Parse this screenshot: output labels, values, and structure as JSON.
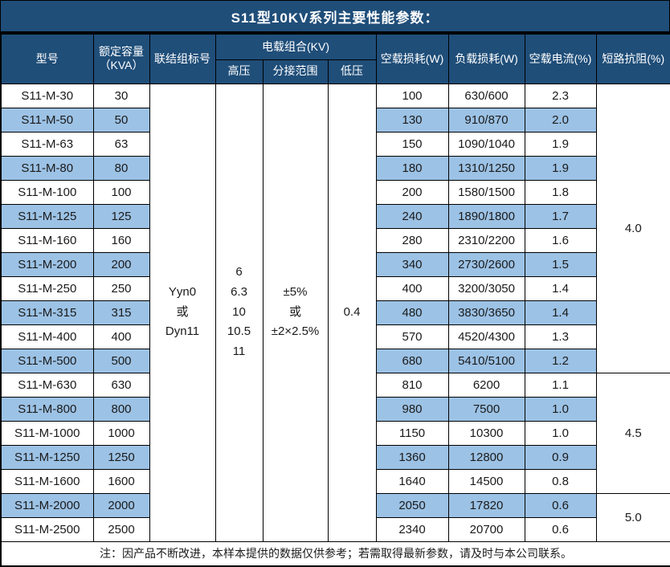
{
  "title": "S11型10KV系列主要性能参数：",
  "colors": {
    "header_bg": "#1F4E79",
    "stripe_bg": "#9CC2E5",
    "border": "#000000",
    "header_text": "#FFFFFF"
  },
  "header": {
    "model": "型号",
    "capacity_line1": "额定容量",
    "capacity_line2": "（KVA）",
    "vector_group": "联结组标号",
    "voltage_combo": "电载组合(KV)",
    "hv": "高压",
    "tap_range": "分接范围",
    "lv": "低压",
    "no_load_loss": "空载损耗(W)",
    "load_loss": "负载损耗(W)",
    "no_load_current": "空载电流(%)",
    "impedance": "短路抗阻(%)"
  },
  "merged": {
    "vector_group_value": [
      "Yyn0",
      "或",
      "Dyn11"
    ],
    "hv_values": [
      "6",
      "6.3",
      "10",
      "10.5",
      "11"
    ],
    "tap_range_values": [
      "±5%",
      "或",
      "±2×2.5%"
    ],
    "lv_value": "0.4"
  },
  "rows": [
    {
      "model": "S11-M-30",
      "capacity": "30",
      "no_load_loss": "100",
      "load_loss": "630/600",
      "no_load_current": "2.3"
    },
    {
      "model": "S11-M-50",
      "capacity": "50",
      "no_load_loss": "130",
      "load_loss": "910/870",
      "no_load_current": "2.0"
    },
    {
      "model": "S11-M-63",
      "capacity": "63",
      "no_load_loss": "150",
      "load_loss": "1090/1040",
      "no_load_current": "1.9"
    },
    {
      "model": "S11-M-80",
      "capacity": "80",
      "no_load_loss": "180",
      "load_loss": "1310/1250",
      "no_load_current": "1.9"
    },
    {
      "model": "S11-M-100",
      "capacity": "100",
      "no_load_loss": "200",
      "load_loss": "1580/1500",
      "no_load_current": "1.8"
    },
    {
      "model": "S11-M-125",
      "capacity": "125",
      "no_load_loss": "240",
      "load_loss": "1890/1800",
      "no_load_current": "1.7"
    },
    {
      "model": "S11-M-160",
      "capacity": "160",
      "no_load_loss": "280",
      "load_loss": "2310/2200",
      "no_load_current": "1.6"
    },
    {
      "model": "S11-M-200",
      "capacity": "200",
      "no_load_loss": "340",
      "load_loss": "2730/2600",
      "no_load_current": "1.5"
    },
    {
      "model": "S11-M-250",
      "capacity": "250",
      "no_load_loss": "400",
      "load_loss": "3200/3050",
      "no_load_current": "1.4"
    },
    {
      "model": "S11-M-315",
      "capacity": "315",
      "no_load_loss": "480",
      "load_loss": "3830/3650",
      "no_load_current": "1.4"
    },
    {
      "model": "S11-M-400",
      "capacity": "400",
      "no_load_loss": "570",
      "load_loss": "4520/4300",
      "no_load_current": "1.3"
    },
    {
      "model": "S11-M-500",
      "capacity": "500",
      "no_load_loss": "680",
      "load_loss": "5410/5100",
      "no_load_current": "1.2"
    },
    {
      "model": "S11-M-630",
      "capacity": "630",
      "no_load_loss": "810",
      "load_loss": "6200",
      "no_load_current": "1.1"
    },
    {
      "model": "S11-M-800",
      "capacity": "800",
      "no_load_loss": "980",
      "load_loss": "7500",
      "no_load_current": "1.0"
    },
    {
      "model": "S11-M-1000",
      "capacity": "1000",
      "no_load_loss": "1150",
      "load_loss": "10300",
      "no_load_current": "1.0"
    },
    {
      "model": "S11-M-1250",
      "capacity": "1250",
      "no_load_loss": "1360",
      "load_loss": "12800",
      "no_load_current": "0.9"
    },
    {
      "model": "S11-M-1600",
      "capacity": "1600",
      "no_load_loss": "1640",
      "load_loss": "14500",
      "no_load_current": "0.8"
    },
    {
      "model": "S11-M-2000",
      "capacity": "2000",
      "no_load_loss": "2050",
      "load_loss": "17820",
      "no_load_current": "0.6"
    },
    {
      "model": "S11-M-2500",
      "capacity": "2500",
      "no_load_loss": "2340",
      "load_loss": "20700",
      "no_load_current": "0.6"
    }
  ],
  "impedance_groups": [
    {
      "value": "4.0",
      "span": 12
    },
    {
      "value": "4.5",
      "span": 5
    },
    {
      "value": "5.0",
      "span": 2
    }
  ],
  "footer_note": "注：因产品不断改进，本样本提供的数据仅供参考；若需取得最新参数，请及时与本公司联系。"
}
